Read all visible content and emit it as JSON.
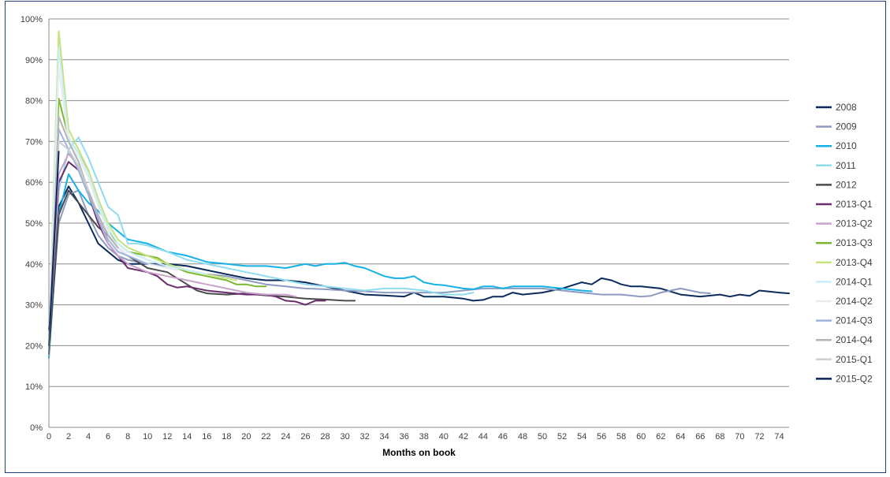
{
  "chart_data": {
    "type": "line",
    "title": "",
    "xlabel": "Months on book",
    "ylabel": "",
    "xlim": [
      0,
      75
    ],
    "ylim": [
      0,
      100
    ],
    "x_ticks": [
      0,
      2,
      4,
      6,
      8,
      10,
      12,
      14,
      16,
      18,
      20,
      22,
      24,
      26,
      28,
      30,
      32,
      34,
      36,
      38,
      40,
      42,
      44,
      46,
      48,
      50,
      52,
      54,
      56,
      58,
      60,
      62,
      64,
      66,
      68,
      70,
      72,
      74
    ],
    "y_ticks": [
      "0%",
      "10%",
      "20%",
      "30%",
      "40%",
      "50%",
      "60%",
      "70%",
      "80%",
      "90%",
      "100%"
    ],
    "grid": "horizontal",
    "legend_position": "right",
    "series": [
      {
        "name": "2008",
        "color": "#0b2a5c",
        "values": [
          [
            0,
            24
          ],
          [
            1,
            54
          ],
          [
            2,
            59
          ],
          [
            3,
            55
          ],
          [
            4,
            50
          ],
          [
            5,
            45
          ],
          [
            6,
            43
          ],
          [
            7,
            41
          ],
          [
            8,
            40
          ],
          [
            9,
            40
          ],
          [
            10,
            40
          ],
          [
            12,
            40
          ],
          [
            14,
            39.5
          ],
          [
            16,
            38.5
          ],
          [
            18,
            37.5
          ],
          [
            20,
            36.5
          ],
          [
            22,
            36
          ],
          [
            24,
            36
          ],
          [
            26,
            35.5
          ],
          [
            28,
            34.5
          ],
          [
            30,
            33.5
          ],
          [
            32,
            32.5
          ],
          [
            34,
            32.3
          ],
          [
            36,
            32
          ],
          [
            37,
            33
          ],
          [
            38,
            32
          ],
          [
            40,
            32
          ],
          [
            42,
            31.5
          ],
          [
            43,
            31
          ],
          [
            44,
            31.2
          ],
          [
            45,
            32
          ],
          [
            46,
            32
          ],
          [
            47,
            33
          ],
          [
            48,
            32.5
          ],
          [
            50,
            33
          ],
          [
            52,
            34
          ],
          [
            54,
            35.5
          ],
          [
            55,
            35
          ],
          [
            56,
            36.5
          ],
          [
            57,
            36
          ],
          [
            58,
            35
          ],
          [
            59,
            34.5
          ],
          [
            60,
            34.5
          ],
          [
            62,
            34
          ],
          [
            64,
            32.5
          ],
          [
            66,
            32
          ],
          [
            68,
            32.5
          ],
          [
            69,
            32
          ],
          [
            70,
            32.5
          ],
          [
            71,
            32.2
          ],
          [
            72,
            33.5
          ],
          [
            74,
            33
          ],
          [
            75,
            32.8
          ]
        ]
      },
      {
        "name": "2009",
        "color": "#8e9bc2",
        "values": [
          [
            0,
            19
          ],
          [
            1,
            50
          ],
          [
            2,
            57
          ],
          [
            3,
            58
          ],
          [
            4,
            52
          ],
          [
            5,
            47
          ],
          [
            6,
            44
          ],
          [
            7,
            42
          ],
          [
            8,
            41
          ],
          [
            10,
            40
          ],
          [
            12,
            39.5
          ],
          [
            14,
            38.5
          ],
          [
            16,
            37.5
          ],
          [
            18,
            37
          ],
          [
            20,
            36
          ],
          [
            22,
            35
          ],
          [
            24,
            34.5
          ],
          [
            26,
            34
          ],
          [
            28,
            33.8
          ],
          [
            30,
            33.5
          ],
          [
            32,
            33.3
          ],
          [
            34,
            33
          ],
          [
            36,
            33
          ],
          [
            38,
            33
          ],
          [
            40,
            33
          ],
          [
            42,
            33.5
          ],
          [
            44,
            34
          ],
          [
            46,
            34
          ],
          [
            48,
            34
          ],
          [
            50,
            34
          ],
          [
            52,
            33.5
          ],
          [
            54,
            33
          ],
          [
            56,
            32.5
          ],
          [
            58,
            32.5
          ],
          [
            60,
            32
          ],
          [
            61,
            32.2
          ],
          [
            62,
            33
          ],
          [
            64,
            34
          ],
          [
            65,
            33.5
          ],
          [
            66,
            33
          ],
          [
            67,
            32.8
          ]
        ]
      },
      {
        "name": "2010",
        "color": "#13b1e6",
        "values": [
          [
            0,
            17
          ],
          [
            1,
            52
          ],
          [
            2,
            62
          ],
          [
            3,
            58
          ],
          [
            4,
            55
          ],
          [
            5,
            53
          ],
          [
            6,
            50
          ],
          [
            7,
            48
          ],
          [
            8,
            46
          ],
          [
            9,
            45.5
          ],
          [
            10,
            45
          ],
          [
            12,
            43
          ],
          [
            14,
            42
          ],
          [
            16,
            40.5
          ],
          [
            18,
            40
          ],
          [
            20,
            39.5
          ],
          [
            22,
            39.5
          ],
          [
            24,
            39
          ],
          [
            26,
            40
          ],
          [
            27,
            39.5
          ],
          [
            28,
            40
          ],
          [
            29,
            40
          ],
          [
            30,
            40.3
          ],
          [
            31,
            39.5
          ],
          [
            32,
            39
          ],
          [
            34,
            37
          ],
          [
            35,
            36.5
          ],
          [
            36,
            36.5
          ],
          [
            37,
            37
          ],
          [
            38,
            35.5
          ],
          [
            39,
            35
          ],
          [
            40,
            34.8
          ],
          [
            42,
            34
          ],
          [
            43,
            33.8
          ],
          [
            44,
            34.5
          ],
          [
            45,
            34.5
          ],
          [
            46,
            34
          ],
          [
            47,
            34.5
          ],
          [
            48,
            34.5
          ],
          [
            50,
            34.5
          ],
          [
            52,
            34
          ],
          [
            54,
            33.5
          ],
          [
            55,
            33.3
          ]
        ]
      },
      {
        "name": "2011",
        "color": "#8fdcef",
        "values": [
          [
            0,
            18
          ],
          [
            1,
            58
          ],
          [
            2,
            68
          ],
          [
            3,
            71
          ],
          [
            4,
            66
          ],
          [
            5,
            60
          ],
          [
            6,
            54
          ],
          [
            7,
            52
          ],
          [
            8,
            45
          ],
          [
            9,
            45
          ],
          [
            10,
            44.5
          ],
          [
            12,
            43
          ],
          [
            14,
            41
          ],
          [
            16,
            40
          ],
          [
            18,
            39
          ],
          [
            20,
            38
          ],
          [
            22,
            37
          ],
          [
            24,
            36
          ],
          [
            26,
            35
          ],
          [
            28,
            34.5
          ],
          [
            30,
            34
          ],
          [
            32,
            33.5
          ],
          [
            34,
            34
          ],
          [
            36,
            34
          ],
          [
            38,
            33.5
          ],
          [
            40,
            32.5
          ],
          [
            42,
            32.5
          ],
          [
            43,
            33
          ]
        ]
      },
      {
        "name": "2012",
        "color": "#4b4b4b",
        "values": [
          [
            0,
            18
          ],
          [
            1,
            52
          ],
          [
            2,
            58
          ],
          [
            3,
            55
          ],
          [
            4,
            52
          ],
          [
            5,
            49
          ],
          [
            6,
            47
          ],
          [
            7,
            44
          ],
          [
            8,
            42
          ],
          [
            10,
            39
          ],
          [
            12,
            38
          ],
          [
            14,
            35
          ],
          [
            15,
            33.5
          ],
          [
            16,
            32.8
          ],
          [
            18,
            32.5
          ],
          [
            20,
            32.8
          ],
          [
            22,
            32.3
          ],
          [
            24,
            32
          ],
          [
            26,
            31.5
          ],
          [
            28,
            31.3
          ],
          [
            30,
            31
          ],
          [
            31,
            31
          ]
        ]
      },
      {
        "name": "2013-Q1",
        "color": "#6b2d6e",
        "values": [
          [
            0,
            20
          ],
          [
            1,
            60
          ],
          [
            2,
            65
          ],
          [
            3,
            63
          ],
          [
            4,
            57
          ],
          [
            5,
            50
          ],
          [
            6,
            45
          ],
          [
            7,
            42
          ],
          [
            8,
            39
          ],
          [
            10,
            38
          ],
          [
            11,
            37
          ],
          [
            12,
            35
          ],
          [
            13,
            34.2
          ],
          [
            14,
            34.5
          ],
          [
            16,
            33.5
          ],
          [
            18,
            33
          ],
          [
            20,
            32.5
          ],
          [
            22,
            32.5
          ],
          [
            23,
            32
          ],
          [
            24,
            31
          ],
          [
            25,
            30.8
          ],
          [
            26,
            30
          ],
          [
            27,
            31
          ],
          [
            28,
            31
          ]
        ]
      },
      {
        "name": "2013-Q2",
        "color": "#c9a2cc",
        "values": [
          [
            0,
            20
          ],
          [
            1,
            62
          ],
          [
            2,
            67
          ],
          [
            3,
            64
          ],
          [
            4,
            58
          ],
          [
            5,
            51
          ],
          [
            6,
            45
          ],
          [
            7,
            42
          ],
          [
            8,
            40
          ],
          [
            10,
            38
          ],
          [
            12,
            37
          ],
          [
            14,
            36
          ],
          [
            16,
            35
          ],
          [
            18,
            34
          ],
          [
            20,
            33
          ],
          [
            22,
            32.5
          ],
          [
            24,
            32.5
          ],
          [
            25,
            32
          ]
        ]
      },
      {
        "name": "2013-Q3",
        "color": "#7cb82f",
        "values": [
          [
            0,
            21
          ],
          [
            1,
            80.5
          ],
          [
            2,
            71
          ],
          [
            3,
            67
          ],
          [
            4,
            63
          ],
          [
            5,
            55
          ],
          [
            6,
            48
          ],
          [
            7,
            45
          ],
          [
            8,
            43
          ],
          [
            10,
            42
          ],
          [
            11,
            41.5
          ],
          [
            12,
            40
          ],
          [
            14,
            38
          ],
          [
            16,
            37
          ],
          [
            18,
            36
          ],
          [
            19,
            35
          ],
          [
            20,
            35
          ],
          [
            21,
            34.5
          ],
          [
            22,
            34.5
          ]
        ]
      },
      {
        "name": "2013-Q4",
        "color": "#c5e27e",
        "values": [
          [
            0,
            21
          ],
          [
            1,
            97
          ],
          [
            2,
            73
          ],
          [
            3,
            68
          ],
          [
            4,
            63
          ],
          [
            5,
            56
          ],
          [
            6,
            50
          ],
          [
            7,
            46
          ],
          [
            8,
            44
          ],
          [
            10,
            42
          ],
          [
            12,
            40
          ],
          [
            14,
            38.5
          ],
          [
            16,
            37.5
          ],
          [
            18,
            36.5
          ],
          [
            19,
            36
          ]
        ]
      },
      {
        "name": "2014-Q1",
        "color": "#c8eef7",
        "values": [
          [
            0,
            20
          ],
          [
            1,
            93
          ],
          [
            2,
            71
          ],
          [
            3,
            67
          ],
          [
            4,
            62
          ],
          [
            5,
            55
          ],
          [
            6,
            49
          ],
          [
            7,
            45
          ],
          [
            8,
            43
          ],
          [
            10,
            41
          ],
          [
            12,
            39.5
          ],
          [
            14,
            38.5
          ],
          [
            16,
            37.5
          ]
        ]
      },
      {
        "name": "2014-Q2",
        "color": "#e8ecef",
        "values": [
          [
            0,
            20
          ],
          [
            1,
            88
          ],
          [
            2,
            70
          ],
          [
            3,
            66
          ],
          [
            4,
            61
          ],
          [
            5,
            54
          ],
          [
            6,
            48
          ],
          [
            7,
            44
          ],
          [
            8,
            42
          ],
          [
            10,
            40
          ],
          [
            12,
            39
          ],
          [
            13,
            38.5
          ]
        ]
      },
      {
        "name": "2014-Q3",
        "color": "#9db3dd",
        "values": [
          [
            0,
            20
          ],
          [
            1,
            73
          ],
          [
            2,
            68
          ],
          [
            3,
            63
          ],
          [
            4,
            57
          ],
          [
            5,
            51
          ],
          [
            6,
            46
          ],
          [
            7,
            43
          ],
          [
            8,
            42
          ],
          [
            9,
            41
          ],
          [
            10,
            40
          ]
        ]
      },
      {
        "name": "2014-Q4",
        "color": "#b3b3b3",
        "values": [
          [
            0,
            20
          ],
          [
            1,
            76
          ],
          [
            2,
            70
          ],
          [
            3,
            65
          ],
          [
            4,
            58
          ],
          [
            5,
            52
          ],
          [
            6,
            47
          ],
          [
            7,
            44
          ]
        ]
      },
      {
        "name": "2015-Q1",
        "color": "#cfcfcf",
        "values": [
          [
            0,
            20
          ],
          [
            1,
            70
          ],
          [
            2,
            68
          ],
          [
            3,
            64
          ],
          [
            4,
            58
          ]
        ]
      },
      {
        "name": "2015-Q2",
        "color": "#06255a",
        "values": [
          [
            0,
            20
          ],
          [
            1,
            67.5
          ]
        ]
      }
    ]
  }
}
